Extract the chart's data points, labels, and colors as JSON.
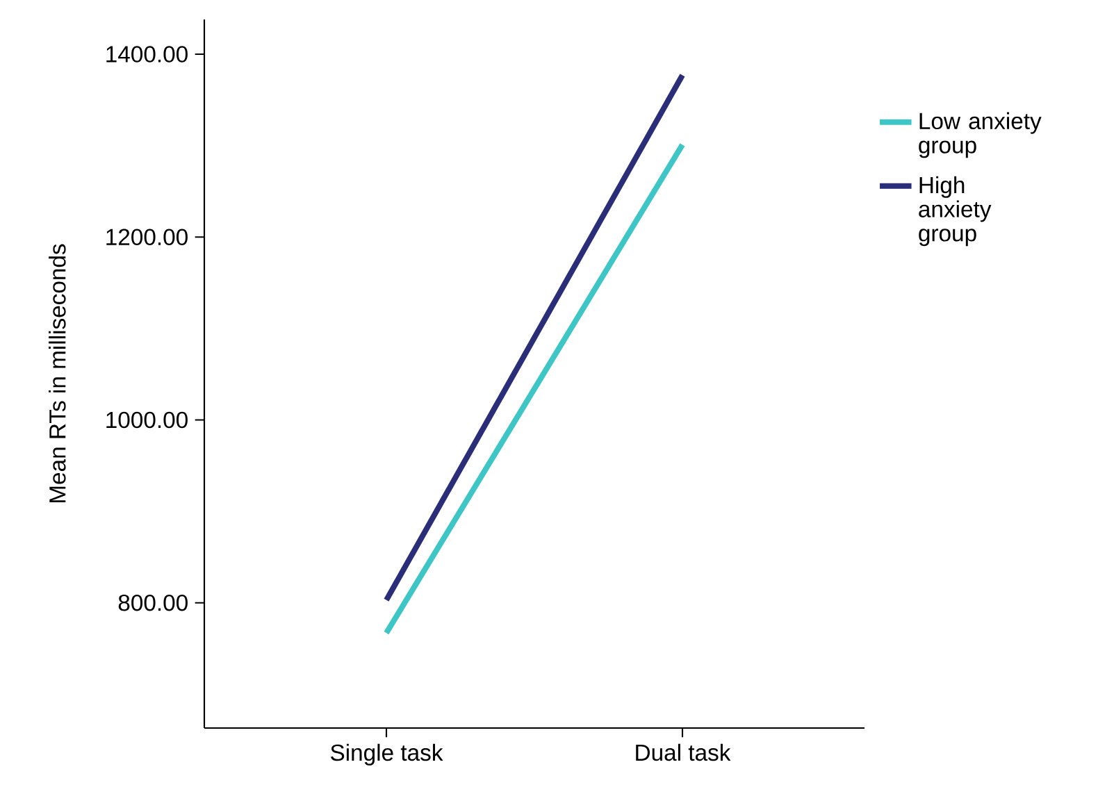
{
  "chart_data": {
    "type": "line",
    "ylabel": "Mean RTs in milliseconds",
    "categories": [
      "Single task",
      "Dual task"
    ],
    "series": [
      {
        "name": "Low anxiety group",
        "color": "#3ec5c5",
        "values": [
          767,
          1301
        ]
      },
      {
        "name": "High anxiety group",
        "color": "#2a2d78",
        "values": [
          803,
          1377
        ]
      }
    ],
    "ylim": [
      663,
      1438
    ],
    "yticks": [
      {
        "value": 800,
        "label": "800.00"
      },
      {
        "value": 1000,
        "label": "1000.00"
      },
      {
        "value": 1200,
        "label": "1200.00"
      },
      {
        "value": 1400,
        "label": "1400.00"
      }
    ],
    "legend": "right",
    "marker": "none",
    "line_style": "solid"
  }
}
